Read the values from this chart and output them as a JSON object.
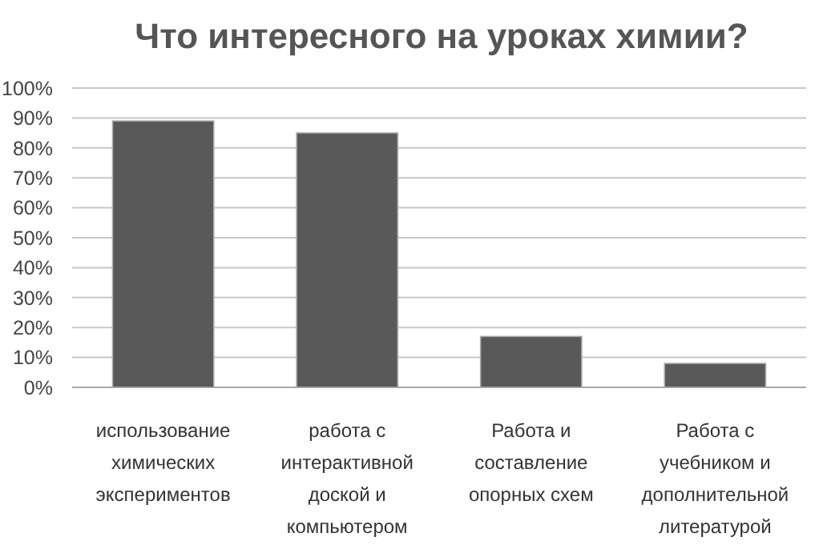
{
  "chart_data": {
    "type": "bar",
    "title": "Что интересного на уроках химии?",
    "categories": [
      "использование\nхимических\nэкспериментов",
      "работа с\nинтерактивной\nдоской и\nкомпьютером",
      "Работа и\nсоставление\nопорных схем",
      "Работа с\nучебником и\nдополнительной\nлитературой"
    ],
    "values": [
      89,
      85,
      17,
      8
    ],
    "color": "#595959",
    "ylim": [
      0,
      100
    ],
    "yticks": [
      {
        "value": 0,
        "label": "0%"
      },
      {
        "value": 10,
        "label": "10%"
      },
      {
        "value": 20,
        "label": "20%"
      },
      {
        "value": 30,
        "label": "30%"
      },
      {
        "value": 40,
        "label": "40%"
      },
      {
        "value": 50,
        "label": "50%"
      },
      {
        "value": 60,
        "label": "60%"
      },
      {
        "value": 70,
        "label": "70%"
      },
      {
        "value": 80,
        "label": "80%"
      },
      {
        "value": 90,
        "label": "90%"
      },
      {
        "value": 100,
        "label": "100%"
      }
    ],
    "grid": "y"
  }
}
